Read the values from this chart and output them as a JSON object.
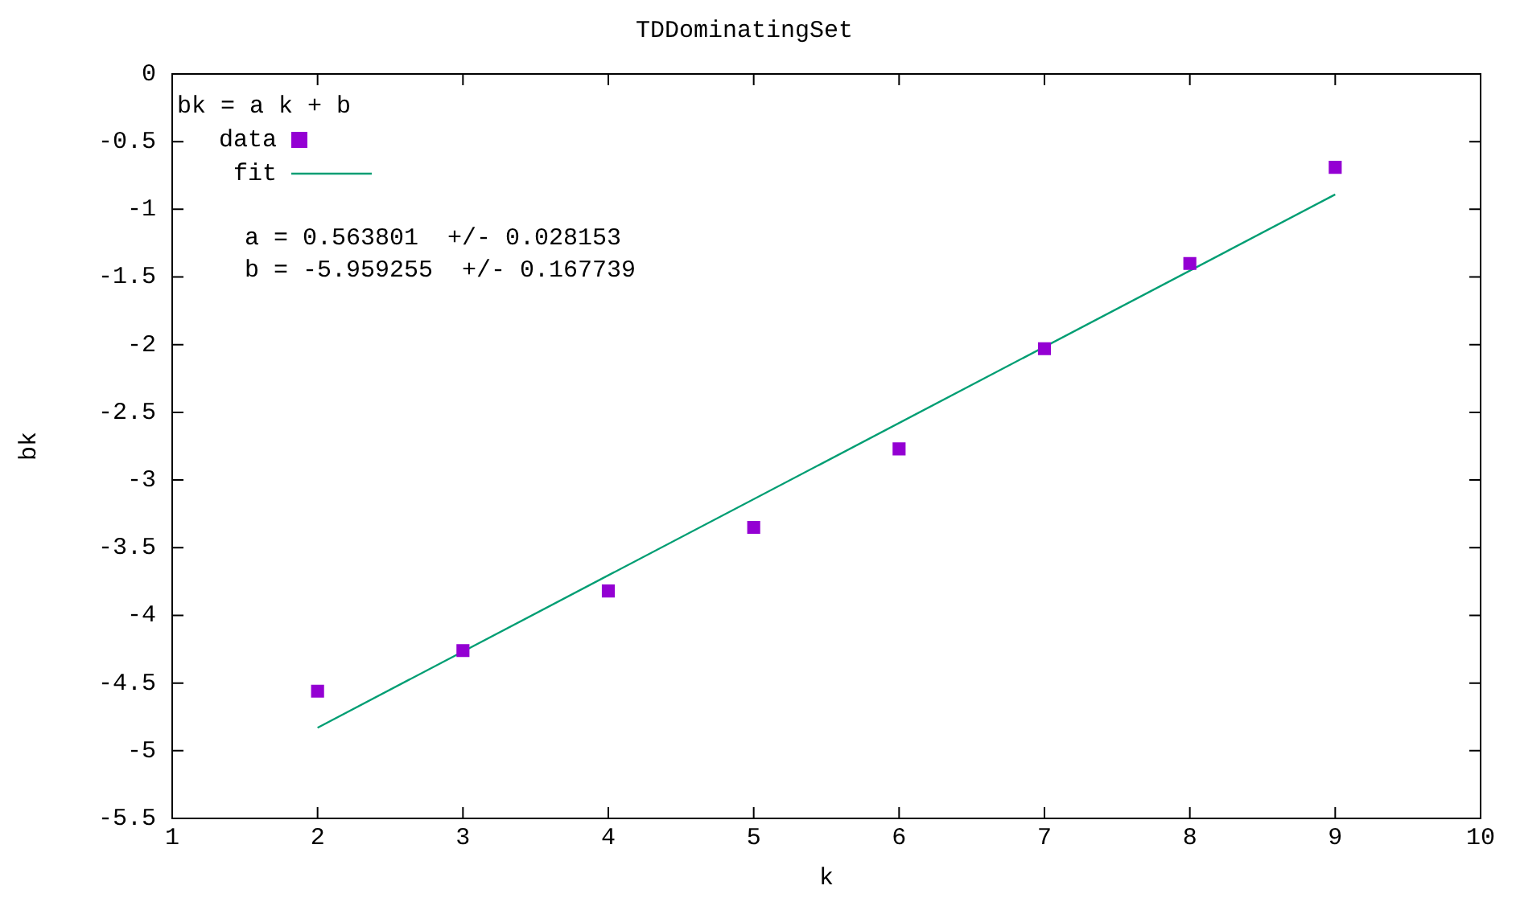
{
  "chart_data": {
    "type": "scatter",
    "title": "TDDominatingSet",
    "xlabel": "k",
    "ylabel": "bk",
    "legend_title": "bk = a k + b",
    "series": [
      {
        "name": "data",
        "type": "scatter",
        "color": "#9400d3",
        "marker": "square",
        "x": [
          2,
          3,
          4,
          5,
          6,
          7,
          8,
          9
        ],
        "values": [
          -4.56,
          -4.26,
          -3.82,
          -3.35,
          -2.77,
          -2.03,
          -1.4,
          -0.69
        ]
      },
      {
        "name": "fit",
        "type": "line",
        "color": "#009e73",
        "marker": "none",
        "line_style": "solid",
        "x": [
          2,
          9
        ],
        "values": [
          -4.83,
          -0.89
        ]
      }
    ],
    "xlim": [
      1,
      10
    ],
    "xticks": [
      1,
      2,
      3,
      4,
      5,
      6,
      7,
      8,
      9,
      10
    ],
    "ylim": [
      -5.5,
      0
    ],
    "yticks": [
      -5.5,
      -5,
      -4.5,
      -4,
      -3.5,
      -3,
      -2.5,
      -2,
      -1.5,
      -1,
      -0.5,
      0
    ],
    "grid": false,
    "legend": "top left",
    "annotations": [
      "a = 0.563801  +/- 0.028153",
      "b = -5.959255  +/- 0.167739"
    ]
  }
}
